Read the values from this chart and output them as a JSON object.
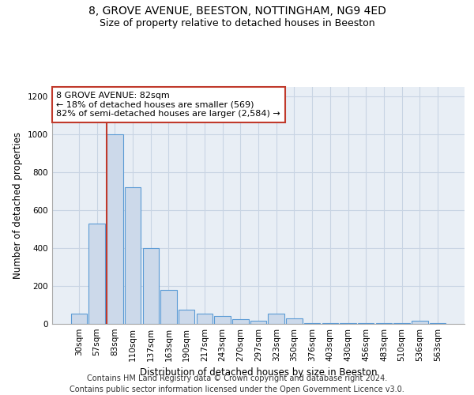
{
  "title_line1": "8, GROVE AVENUE, BEESTON, NOTTINGHAM, NG9 4ED",
  "title_line2": "Size of property relative to detached houses in Beeston",
  "xlabel": "Distribution of detached houses by size in Beeston",
  "ylabel": "Number of detached properties",
  "footer_line1": "Contains HM Land Registry data © Crown copyright and database right 2024.",
  "footer_line2": "Contains public sector information licensed under the Open Government Licence v3.0.",
  "bar_labels": [
    "30sqm",
    "57sqm",
    "83sqm",
    "110sqm",
    "137sqm",
    "163sqm",
    "190sqm",
    "217sqm",
    "243sqm",
    "270sqm",
    "297sqm",
    "323sqm",
    "350sqm",
    "376sqm",
    "403sqm",
    "430sqm",
    "456sqm",
    "483sqm",
    "510sqm",
    "536sqm",
    "563sqm"
  ],
  "bar_values": [
    55,
    530,
    1000,
    720,
    400,
    180,
    75,
    55,
    40,
    25,
    15,
    55,
    30,
    5,
    5,
    5,
    5,
    5,
    5,
    15,
    5
  ],
  "bar_color": "#ccd9ea",
  "bar_edge_color": "#5b9bd5",
  "property_label": "8 GROVE AVENUE: 82sqm",
  "annotation_line2": "← 18% of detached houses are smaller (569)",
  "annotation_line3": "82% of semi-detached houses are larger (2,584) →",
  "vline_color": "#c0392b",
  "annotation_box_color": "#ffffff",
  "annotation_box_edgecolor": "#c0392b",
  "ylim": [
    0,
    1250
  ],
  "yticks": [
    0,
    200,
    400,
    600,
    800,
    1000,
    1200
  ],
  "bg_color": "#ffffff",
  "plot_bg_color": "#e8eef5",
  "grid_color": "#c8d4e3",
  "title_fontsize": 10,
  "subtitle_fontsize": 9,
  "axis_label_fontsize": 8.5,
  "tick_fontsize": 7.5,
  "footer_fontsize": 7,
  "annot_fontsize": 8
}
